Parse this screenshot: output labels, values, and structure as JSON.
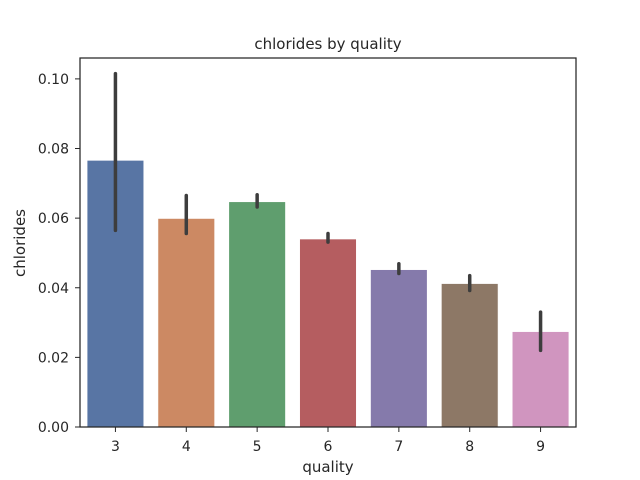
{
  "chart_data": {
    "type": "bar",
    "title": "chlorides by quality",
    "xlabel": "quality",
    "ylabel": "chlorides",
    "categories": [
      "3",
      "4",
      "5",
      "6",
      "7",
      "8",
      "9"
    ],
    "values": [
      0.0766,
      0.0599,
      0.0647,
      0.054,
      0.0452,
      0.0412,
      0.0274
    ],
    "error_low": [
      0.0565,
      0.0556,
      0.0632,
      0.0531,
      0.0441,
      0.0392,
      0.022
    ],
    "error_high": [
      0.1015,
      0.0665,
      0.0667,
      0.0556,
      0.0469,
      0.0435,
      0.033
    ],
    "colors": [
      "#5875a4",
      "#cc8963",
      "#5f9e6e",
      "#b55d60",
      "#857aab",
      "#8d7866",
      "#d095bf"
    ],
    "error_color": "#3d3d3d",
    "ylim": [
      0,
      0.106
    ],
    "yticks": [
      0.0,
      0.02,
      0.04,
      0.06,
      0.08,
      0.1
    ],
    "ytick_labels": [
      "0.00",
      "0.02",
      "0.04",
      "0.06",
      "0.08",
      "0.10"
    ],
    "grid": false
  }
}
